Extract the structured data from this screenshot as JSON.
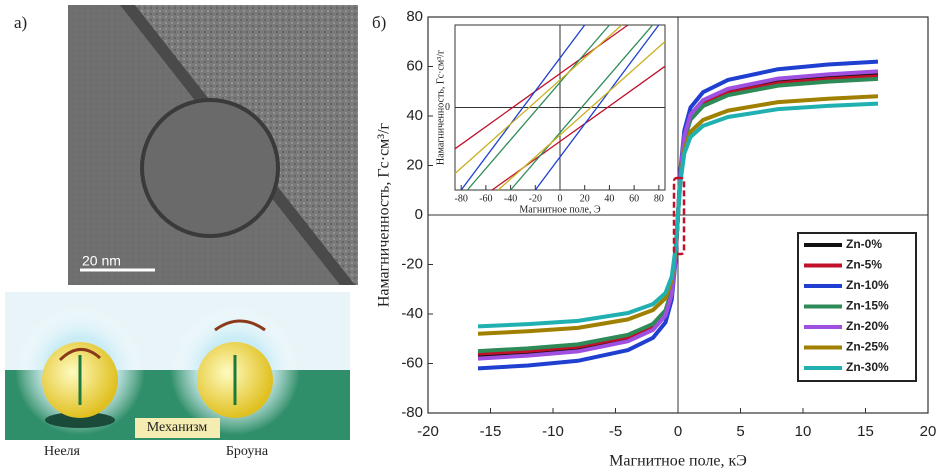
{
  "panel_a": {
    "label": "а)",
    "scale_bar": "20 nm",
    "mechanism": "Механизм",
    "neel": "Нееля",
    "brown": "Броуна"
  },
  "chart_data": [
    {
      "type": "line",
      "panel_label": "б)",
      "x_label": "Магнитное поле, кЭ",
      "y_label": "Намагниченность, Гс·см³/г",
      "xlim": [
        -20,
        20
      ],
      "xticks": [
        -20,
        -15,
        -10,
        -5,
        0,
        5,
        10,
        15,
        20
      ],
      "ylim": [
        -80,
        80
      ],
      "yticks": [
        -80,
        -60,
        -40,
        -20,
        0,
        20,
        40,
        60,
        80
      ],
      "legend": "lower right",
      "x": [
        -16,
        -12,
        -8,
        -4,
        -2,
        -1,
        -0.5,
        -0.2,
        0,
        0.2,
        0.5,
        1,
        2,
        4,
        8,
        12,
        16
      ],
      "series": [
        {
          "name": "Zn-0%",
          "color": "#111111",
          "values": [
            -57,
            -55.9,
            -54.2,
            -50.2,
            -45.6,
            -39.9,
            -31.4,
            -17.1,
            0,
            17.1,
            31.4,
            39.9,
            45.6,
            50.2,
            54.2,
            55.9,
            57
          ]
        },
        {
          "name": "Zn-5%",
          "color": "#c0102a",
          "values": [
            -56,
            -54.9,
            -53.2,
            -49.3,
            -44.8,
            -39.2,
            -30.8,
            -16.8,
            0,
            16.8,
            30.8,
            39.2,
            44.8,
            49.3,
            53.2,
            54.9,
            56
          ]
        },
        {
          "name": "Zn-10%",
          "color": "#1f3fd0",
          "values": [
            -62,
            -60.8,
            -58.9,
            -54.6,
            -49.6,
            -43.4,
            -34.1,
            -18.6,
            0,
            18.6,
            34.1,
            43.4,
            49.6,
            54.6,
            58.9,
            60.8,
            62
          ]
        },
        {
          "name": "Zn-15%",
          "color": "#2e8b57",
          "values": [
            -55,
            -53.9,
            -52.3,
            -48.4,
            -44,
            -38.5,
            -30.3,
            -16.5,
            0,
            16.5,
            30.3,
            38.5,
            44,
            48.4,
            52.3,
            53.9,
            55
          ]
        },
        {
          "name": "Zn-20%",
          "color": "#a050e0",
          "values": [
            -58,
            -56.8,
            -55.1,
            -51,
            -46.4,
            -40.6,
            -31.9,
            -17.4,
            0,
            17.4,
            31.9,
            40.6,
            46.4,
            51,
            55.1,
            56.8,
            58
          ]
        },
        {
          "name": "Zn-25%",
          "color": "#a08000",
          "values": [
            -48,
            -47,
            -45.6,
            -42.2,
            -38.4,
            -33.6,
            -26.4,
            -14.4,
            0,
            14.4,
            26.4,
            33.6,
            38.4,
            42.2,
            45.6,
            47,
            48
          ]
        },
        {
          "name": "Zn-30%",
          "color": "#20b0b0",
          "values": [
            -45,
            -44.1,
            -42.8,
            -39.6,
            -36,
            -31.5,
            -24.8,
            -13.5,
            0,
            13.5,
            24.8,
            31.5,
            36,
            39.6,
            42.8,
            44.1,
            45
          ]
        }
      ]
    },
    {
      "type": "line",
      "x_label": "Магнитное поле, Э",
      "y_label": "Намагниченность, Гс·см³/г",
      "xlim": [
        -85,
        85
      ],
      "xticks": [
        -80,
        -60,
        -40,
        -20,
        0,
        20,
        40,
        60,
        80
      ],
      "ylim": [
        -10,
        10
      ],
      "yticks": [
        0
      ],
      "series": [
        {
          "color": "#c0102a",
          "x": [
            -85,
            55
          ],
          "values": [
            -5,
            10
          ]
        },
        {
          "color": "#c0102a",
          "x": [
            -55,
            85
          ],
          "values": [
            -10,
            5
          ]
        },
        {
          "color": "#1f3fd0",
          "x": [
            -80,
            20
          ],
          "values": [
            -10,
            10
          ]
        },
        {
          "color": "#1f3fd0",
          "x": [
            -20,
            80
          ],
          "values": [
            -10,
            10
          ]
        },
        {
          "color": "#2e8b57",
          "x": [
            -75,
            40
          ],
          "values": [
            -10,
            10
          ]
        },
        {
          "color": "#2e8b57",
          "x": [
            -40,
            75
          ],
          "values": [
            -10,
            10
          ]
        },
        {
          "color": "#c8b020",
          "x": [
            -50,
            85
          ],
          "values": [
            -10,
            8
          ]
        },
        {
          "color": "#c8b020",
          "x": [
            -85,
            50
          ],
          "values": [
            -8,
            10
          ]
        }
      ]
    }
  ]
}
